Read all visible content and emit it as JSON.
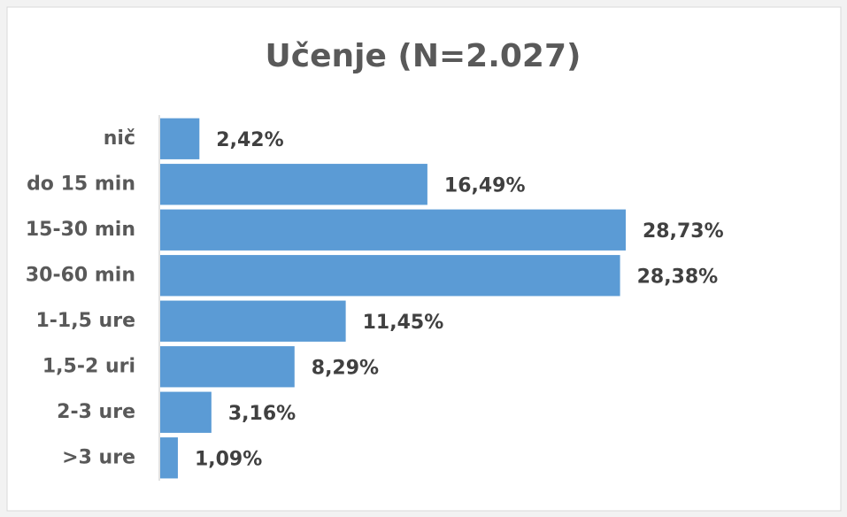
{
  "chart_data": {
    "type": "bar",
    "orientation": "horizontal",
    "title": "Učenje (N=2.027)",
    "categories": [
      "nič",
      "do 15 min",
      "15-30 min",
      "30-60 min",
      "1-1,5 ure",
      "1,5-2 uri",
      "2-3 ure",
      ">3 ure"
    ],
    "values": [
      2.42,
      16.49,
      28.73,
      28.38,
      11.45,
      8.29,
      3.16,
      1.09
    ],
    "value_labels": [
      "2,42%",
      "16,49%",
      "28,73%",
      "28,38%",
      "11,45%",
      "8,29%",
      "3,16%",
      "1,09%"
    ],
    "color": "#5b9bd5"
  }
}
